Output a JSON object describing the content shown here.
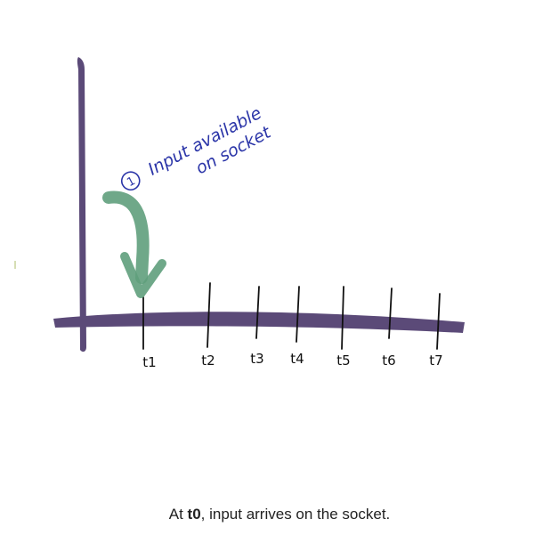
{
  "diagram": {
    "annotation": {
      "number": "1",
      "line1": "Input available",
      "line2": "on socket"
    },
    "ticks": [
      "t1",
      "t2",
      "t3",
      "t4",
      "t5",
      "t6",
      "t7"
    ],
    "colors": {
      "axis": "#5b4a78",
      "annotation_text": "#2b35a8",
      "arrow": "#5f9f7c",
      "ticks": "#111111"
    }
  },
  "caption": {
    "prefix": "At ",
    "bold": "t0",
    "suffix": ", input arrives on the socket."
  }
}
